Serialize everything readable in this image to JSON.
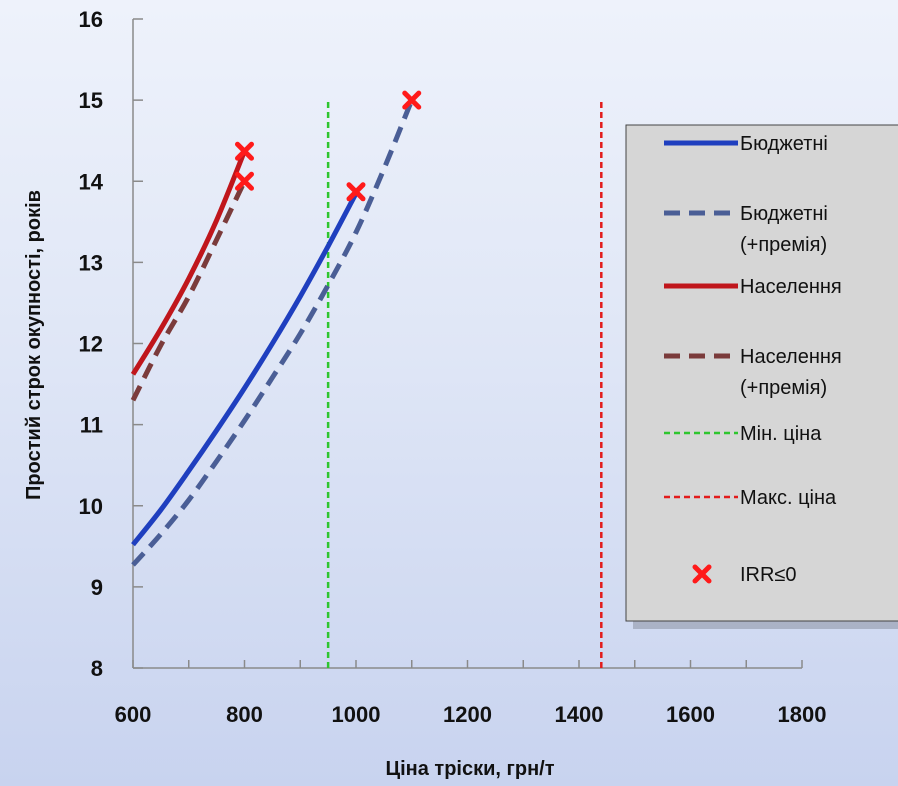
{
  "chart_data": {
    "type": "line",
    "title": "",
    "xlabel": "Ціна тріски, грн/т",
    "ylabel": "Простий строк окупності, років",
    "xlim": [
      600,
      1800
    ],
    "ylim": [
      8,
      16
    ],
    "x_ticks": [
      "600",
      "800",
      "1000",
      "1200",
      "1400",
      "1600",
      "1800"
    ],
    "x_tick_values": [
      600,
      800,
      1000,
      1200,
      1400,
      1600,
      1800
    ],
    "y_ticks": [
      "8",
      "9",
      "10",
      "11",
      "12",
      "13",
      "14",
      "15",
      "16"
    ],
    "y_tick_values": [
      8,
      9,
      10,
      11,
      12,
      13,
      14,
      15,
      16
    ],
    "x_minor_step": 100,
    "grid": false,
    "legend_position": "right",
    "series": [
      {
        "name": "Бюджетні",
        "style": "solid",
        "color": "#1f3fbf",
        "x": [
          600,
          650,
          700,
          750,
          800,
          850,
          900,
          950,
          1000
        ],
        "y": [
          9.52,
          9.95,
          10.43,
          10.93,
          11.45,
          12.0,
          12.58,
          13.2,
          13.85
        ]
      },
      {
        "name": "Бюджетні (+премія)",
        "style": "dashed",
        "color": "#4a5e96",
        "x": [
          600,
          650,
          700,
          750,
          800,
          850,
          900,
          950,
          1000,
          1050,
          1100
        ],
        "y": [
          9.27,
          9.65,
          10.07,
          10.55,
          11.05,
          11.58,
          12.12,
          12.72,
          13.37,
          14.15,
          15.0
        ]
      },
      {
        "name": "Населення",
        "style": "solid",
        "color": "#c0161c",
        "x": [
          600,
          650,
          700,
          750,
          800
        ],
        "y": [
          11.62,
          12.18,
          12.8,
          13.52,
          14.37
        ]
      },
      {
        "name": "Населення (+премія)",
        "style": "dashed",
        "color": "#7b3b3b",
        "x": [
          600,
          650,
          700,
          750,
          800
        ],
        "y": [
          11.3,
          11.98,
          12.58,
          13.28,
          14.0
        ]
      },
      {
        "name": "Мін. ціна",
        "style": "dotted",
        "color": "#2ec62e",
        "x": [
          950,
          950
        ],
        "y": [
          8,
          15
        ]
      },
      {
        "name": "Макс. ціна",
        "style": "dotted",
        "color": "#e21b1b",
        "x": [
          1440,
          1440
        ],
        "y": [
          8,
          15
        ]
      }
    ],
    "markers": {
      "name": "IRR≤0",
      "color": "#ff1a1a",
      "points": [
        {
          "x": 800,
          "y": 14.37
        },
        {
          "x": 800,
          "y": 14.0
        },
        {
          "x": 1000,
          "y": 13.87
        },
        {
          "x": 1100,
          "y": 15.0
        }
      ]
    },
    "legend": [
      {
        "lines": [
          "Бюджетні"
        ],
        "series": 0
      },
      {
        "lines": [
          "Бюджетні",
          "(+премія)"
        ],
        "series": 1
      },
      {
        "lines": [
          "Населення"
        ],
        "series": 2
      },
      {
        "lines": [
          "Населення",
          "(+премія)"
        ],
        "series": 3
      },
      {
        "lines": [
          "Мін. ціна"
        ],
        "series": 4
      },
      {
        "lines": [
          "Макс. ціна"
        ],
        "series": 5
      },
      {
        "lines": [
          "IRR≤0"
        ],
        "series": "markers"
      }
    ]
  }
}
